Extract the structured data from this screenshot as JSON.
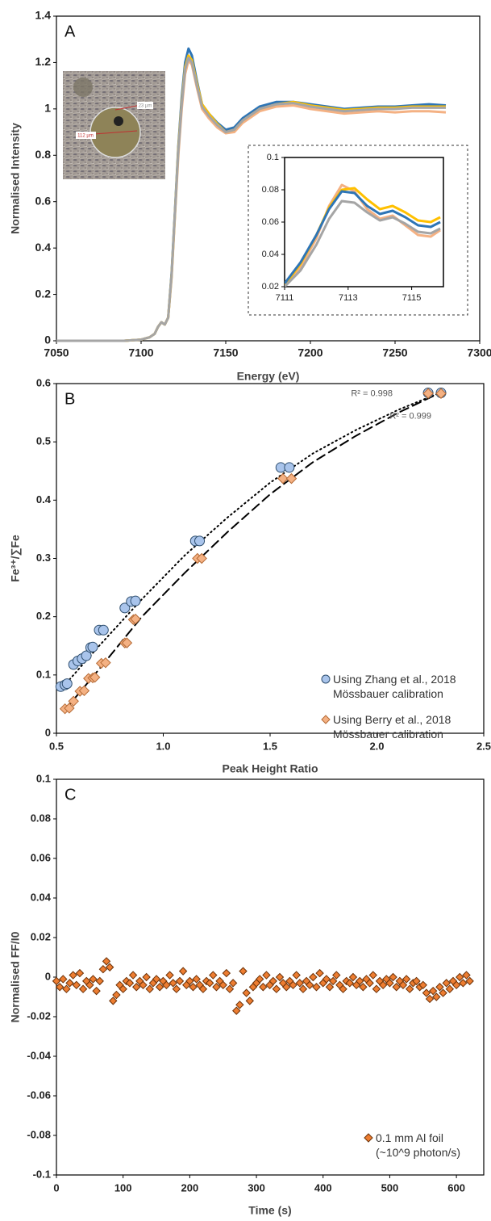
{
  "chart_data": [
    {
      "type": "line",
      "panel_label": "A",
      "x_label": "Energy (eV)",
      "y_label": "Normalised Intensity",
      "xlim": [
        7050,
        7300
      ],
      "xticks": [
        7050,
        7100,
        7150,
        7200,
        7250,
        7300
      ],
      "ylim": [
        0,
        1.4
      ],
      "yticks": [
        0,
        0.2,
        0.4,
        0.6,
        0.8,
        1,
        1.2,
        1.4
      ],
      "photo_labels": [
        "112 µm",
        "23 µm"
      ],
      "x": [
        7050,
        7090,
        7100,
        7105,
        7108,
        7110,
        7112,
        7113,
        7114,
        7116,
        7118,
        7120,
        7122,
        7124,
        7126,
        7128,
        7130,
        7133,
        7136,
        7140,
        7145,
        7150,
        7155,
        7160,
        7170,
        7180,
        7190,
        7200,
        7210,
        7220,
        7230,
        7240,
        7250,
        7260,
        7270,
        7280
      ],
      "series": [
        {
          "color": "#2e75b6",
          "values": [
            0,
            0,
            0.005,
            0.015,
            0.03,
            0.06,
            0.08,
            0.075,
            0.07,
            0.1,
            0.29,
            0.56,
            0.84,
            1.05,
            1.2,
            1.26,
            1.23,
            1.12,
            1.02,
            0.98,
            0.94,
            0.91,
            0.92,
            0.96,
            1.01,
            1.03,
            1.03,
            1.02,
            1.01,
            1.0,
            1.005,
            1.01,
            1.01,
            1.015,
            1.02,
            1.015
          ]
        },
        {
          "color": "#f4b183",
          "values": [
            0,
            0,
            0.005,
            0.015,
            0.03,
            0.06,
            0.08,
            0.075,
            0.07,
            0.1,
            0.27,
            0.54,
            0.8,
            1.0,
            1.15,
            1.21,
            1.19,
            1.09,
            1.0,
            0.96,
            0.92,
            0.895,
            0.9,
            0.94,
            0.99,
            1.01,
            1.015,
            1.0,
            0.99,
            0.98,
            0.985,
            0.99,
            0.985,
            0.99,
            0.99,
            0.985
          ]
        },
        {
          "color": "#ffc000",
          "values": [
            0,
            0,
            0.005,
            0.015,
            0.03,
            0.06,
            0.08,
            0.075,
            0.07,
            0.1,
            0.28,
            0.55,
            0.83,
            1.03,
            1.18,
            1.23,
            1.21,
            1.11,
            1.02,
            0.98,
            0.935,
            0.9,
            0.91,
            0.95,
            1.0,
            1.02,
            1.03,
            1.015,
            1.005,
            0.995,
            1.0,
            1.005,
            1.005,
            1.01,
            1.01,
            1.01
          ]
        },
        {
          "color": "#a5a5a5",
          "values": [
            0,
            0,
            0.005,
            0.015,
            0.03,
            0.06,
            0.08,
            0.075,
            0.07,
            0.1,
            0.28,
            0.55,
            0.82,
            1.02,
            1.17,
            1.22,
            1.2,
            1.1,
            1.01,
            0.97,
            0.93,
            0.9,
            0.91,
            0.95,
            1.0,
            1.02,
            1.025,
            1.01,
            1.0,
            0.99,
            0.995,
            1.0,
            1.0,
            1.005,
            1.005,
            1.005
          ]
        }
      ],
      "inset": {
        "xlim": [
          7111,
          7116
        ],
        "xticks": [
          7111,
          7113,
          7115
        ],
        "ylim": [
          0.02,
          0.1
        ],
        "yticks": [
          0.02,
          0.04,
          0.06,
          0.08,
          0.1
        ],
        "x": [
          7111,
          7111.5,
          7112,
          7112.4,
          7112.8,
          7113.2,
          7113.6,
          7114,
          7114.4,
          7114.8,
          7115.2,
          7115.6,
          7115.9
        ],
        "series": [
          {
            "color": "#f4b183",
            "values": [
              0.02,
              0.032,
              0.05,
              0.07,
              0.083,
              0.079,
              0.068,
              0.062,
              0.064,
              0.058,
              0.052,
              0.051,
              0.055
            ]
          },
          {
            "color": "#ffc000",
            "values": [
              0.021,
              0.034,
              0.052,
              0.069,
              0.08,
              0.081,
              0.074,
              0.068,
              0.07,
              0.066,
              0.061,
              0.06,
              0.063
            ]
          },
          {
            "color": "#a5a5a5",
            "values": [
              0.02,
              0.03,
              0.046,
              0.062,
              0.073,
              0.072,
              0.066,
              0.061,
              0.063,
              0.059,
              0.054,
              0.053,
              0.056
            ]
          },
          {
            "color": "#2e75b6",
            "values": [
              0.022,
              0.035,
              0.052,
              0.068,
              0.079,
              0.078,
              0.07,
              0.065,
              0.067,
              0.063,
              0.058,
              0.057,
              0.06
            ]
          }
        ]
      }
    },
    {
      "type": "scatter",
      "panel_label": "B",
      "x_label": "Peak Height Ratio",
      "y_label": "Fe³⁺/∑Fe",
      "xlim": [
        0.5,
        2.5
      ],
      "xticks": [
        0.5,
        {
          "value": 1,
          "label": "1.0"
        },
        1.5,
        {
          "value": 2,
          "label": "2.0"
        },
        2.5
      ],
      "ylim": [
        0,
        0.6
      ],
      "yticks": [
        0,
        0.1,
        0.2,
        0.3,
        0.4,
        0.5,
        0.6
      ],
      "legend": "lower right",
      "series": [
        {
          "name": "Using Zhang et al., 2018 Mössbauer calibration",
          "color": "#a9c4eb",
          "edge": "#2f4f6f",
          "marker": "circle",
          "x": [
            0.52,
            0.54,
            0.55,
            0.58,
            0.6,
            0.62,
            0.64,
            0.66,
            0.67,
            0.7,
            0.72,
            0.82,
            0.85,
            0.87,
            1.15,
            1.17,
            1.55,
            1.59,
            2.24,
            2.3
          ],
          "values": [
            0.08,
            0.083,
            0.085,
            0.118,
            0.124,
            0.128,
            0.133,
            0.147,
            0.148,
            0.177,
            0.177,
            0.215,
            0.226,
            0.227,
            0.33,
            0.33,
            0.456,
            0.456,
            0.584,
            0.584
          ]
        },
        {
          "name": "Using Berry et al., 2018 Mössbauer calibration",
          "color": "#f4b183",
          "edge": "#b56a35",
          "marker": "diamond",
          "x": [
            0.54,
            0.56,
            0.58,
            0.61,
            0.63,
            0.65,
            0.67,
            0.68,
            0.71,
            0.73,
            0.82,
            0.83,
            0.86,
            0.87,
            1.16,
            1.18,
            1.56,
            1.6,
            2.24,
            2.3
          ],
          "values": [
            0.042,
            0.043,
            0.055,
            0.072,
            0.073,
            0.094,
            0.095,
            0.096,
            0.12,
            0.121,
            0.155,
            0.155,
            0.195,
            0.196,
            0.3,
            0.3,
            0.437,
            0.437,
            0.583,
            0.583
          ]
        }
      ],
      "trendlines": [
        {
          "style": "dotted",
          "label": "R² = 0.998",
          "x": [
            0.52,
            0.7,
            0.9,
            1.1,
            1.3,
            1.5,
            1.7,
            1.9,
            2.1,
            2.3
          ],
          "values": [
            0.075,
            0.15,
            0.23,
            0.305,
            0.37,
            0.43,
            0.48,
            0.52,
            0.555,
            0.585
          ]
        },
        {
          "style": "dashed",
          "label": "R² = 0.999",
          "x": [
            0.54,
            0.7,
            0.9,
            1.1,
            1.3,
            1.5,
            1.7,
            1.9,
            2.1,
            2.3
          ],
          "values": [
            0.04,
            0.11,
            0.2,
            0.275,
            0.345,
            0.41,
            0.465,
            0.51,
            0.55,
            0.585
          ]
        }
      ]
    },
    {
      "type": "scatter",
      "panel_label": "C",
      "x_label": "Time (s)",
      "y_label": "Normalised FF/I0",
      "xlim": [
        0,
        641
      ],
      "xticks": [
        0,
        100,
        200,
        300,
        400,
        500,
        600
      ],
      "ylim": [
        -0.1,
        0.1
      ],
      "yticks": [
        -0.1,
        -0.08,
        -0.06,
        -0.04,
        -0.02,
        0,
        0.02,
        0.04,
        0.06,
        0.08,
        0.1
      ],
      "legend": "lower right",
      "series": [
        {
          "name": "0.1 mm Al foil (~10^9 photon/s)",
          "color": "#ed7d31",
          "edge": "#6b3108",
          "marker": "diamond",
          "x": [
            0,
            5,
            10,
            15,
            20,
            25,
            30,
            35,
            40,
            45,
            50,
            55,
            60,
            65,
            70,
            75,
            80,
            85,
            90,
            95,
            100,
            105,
            110,
            115,
            120,
            125,
            130,
            135,
            140,
            145,
            150,
            155,
            160,
            165,
            170,
            175,
            180,
            185,
            190,
            195,
            200,
            205,
            210,
            215,
            220,
            225,
            230,
            235,
            240,
            245,
            250,
            255,
            260,
            265,
            270,
            275,
            280,
            285,
            290,
            295,
            300,
            305,
            310,
            315,
            320,
            325,
            330,
            335,
            340,
            345,
            350,
            355,
            360,
            365,
            370,
            375,
            380,
            385,
            390,
            395,
            400,
            405,
            410,
            415,
            420,
            425,
            430,
            435,
            440,
            445,
            450,
            455,
            460,
            465,
            470,
            475,
            480,
            485,
            490,
            495,
            500,
            505,
            510,
            515,
            520,
            525,
            530,
            535,
            540,
            545,
            550,
            555,
            560,
            565,
            570,
            575,
            580,
            585,
            590,
            595,
            600,
            605,
            610,
            615,
            620
          ],
          "values": [
            -0.002,
            -0.005,
            -0.001,
            -0.006,
            -0.003,
            0.001,
            -0.004,
            0.002,
            -0.006,
            -0.002,
            -0.004,
            -0.001,
            -0.007,
            -0.002,
            0.004,
            0.008,
            0.005,
            -0.012,
            -0.009,
            -0.004,
            -0.006,
            -0.002,
            -0.003,
            0.001,
            -0.005,
            -0.002,
            -0.004,
            0,
            -0.006,
            -0.003,
            -0.001,
            -0.005,
            -0.002,
            -0.004,
            0.001,
            -0.003,
            -0.006,
            -0.002,
            0.003,
            -0.004,
            -0.002,
            -0.005,
            -0.001,
            -0.004,
            -0.006,
            -0.002,
            -0.003,
            0.001,
            -0.005,
            -0.002,
            -0.004,
            0.002,
            -0.006,
            -0.003,
            -0.017,
            -0.014,
            0.003,
            -0.008,
            -0.012,
            -0.005,
            -0.003,
            -0.001,
            -0.005,
            0.001,
            -0.004,
            -0.002,
            -0.006,
            0,
            -0.003,
            -0.005,
            -0.002,
            -0.004,
            0.001,
            -0.003,
            -0.006,
            -0.002,
            -0.004,
            0,
            -0.005,
            0.002,
            -0.003,
            -0.001,
            -0.005,
            -0.002,
            0.001,
            -0.004,
            -0.006,
            -0.002,
            -0.003,
            0,
            -0.004,
            -0.002,
            -0.005,
            -0.001,
            -0.003,
            0.001,
            -0.006,
            -0.002,
            -0.004,
            -0.001,
            -0.003,
            0,
            -0.005,
            -0.002,
            -0.004,
            -0.001,
            -0.006,
            -0.003,
            -0.002,
            -0.005,
            -0.004,
            -0.008,
            -0.011,
            -0.007,
            -0.01,
            -0.005,
            -0.008,
            -0.003,
            -0.006,
            -0.002,
            -0.004,
            0,
            -0.003,
            0.001,
            -0.002
          ]
        }
      ]
    }
  ]
}
